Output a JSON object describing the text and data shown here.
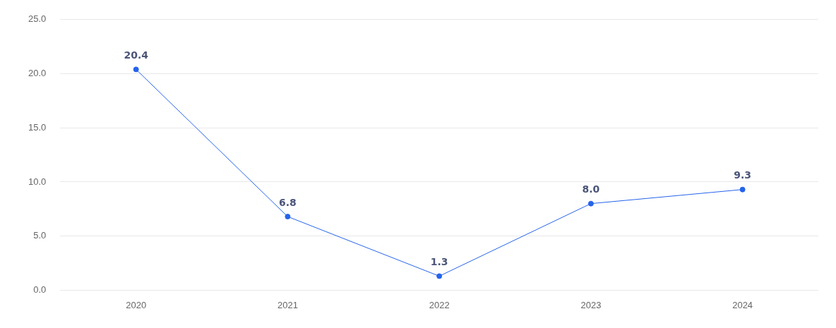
{
  "chart_data": {
    "type": "line",
    "categories": [
      "2020",
      "2021",
      "2022",
      "2023",
      "2024"
    ],
    "series": [
      {
        "color": "#2563eb",
        "values": [
          20.4,
          6.8,
          1.3,
          8.0,
          9.3
        ],
        "value_labels": [
          "20.4",
          "6.8",
          "1.3",
          "8.0",
          "9.3"
        ]
      }
    ],
    "ylim": [
      0,
      25
    ],
    "yticks": [
      {
        "value": 0,
        "label": "0.0"
      },
      {
        "value": 5,
        "label": "5.0"
      },
      {
        "value": 10,
        "label": "10.0"
      },
      {
        "value": 15,
        "label": "15.0"
      },
      {
        "value": 20,
        "label": "20.0"
      },
      {
        "value": 25,
        "label": "25.0"
      }
    ],
    "grid": "y",
    "legend": false,
    "marker": "circle",
    "line_style": "solid"
  }
}
